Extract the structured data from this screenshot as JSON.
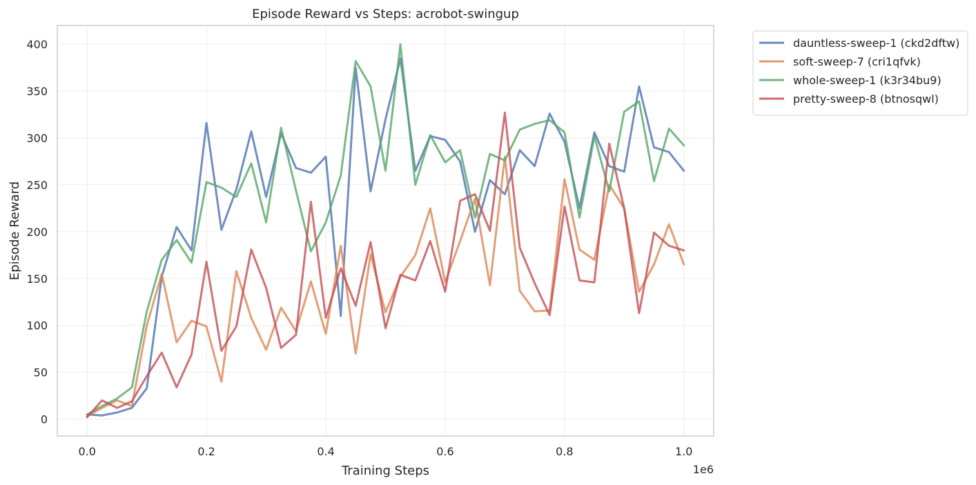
{
  "chart_data": {
    "type": "line",
    "title": "Episode Reward vs Steps: acrobot-swingup",
    "xlabel": "Training Steps",
    "ylabel": "Episode Reward",
    "x_offset_label": "1e6",
    "xlim": [
      -0.05,
      1.05
    ],
    "ylim": [
      -18,
      420
    ],
    "xticks": [
      0.0,
      0.2,
      0.4,
      0.6,
      0.8,
      1.0
    ],
    "xtick_labels": [
      "0.0",
      "0.2",
      "0.4",
      "0.6",
      "0.8",
      "1.0"
    ],
    "yticks": [
      0,
      50,
      100,
      150,
      200,
      250,
      300,
      350,
      400
    ],
    "ytick_labels": [
      "0",
      "50",
      "100",
      "150",
      "200",
      "250",
      "300",
      "350",
      "400"
    ],
    "grid": true,
    "legend_position": "outside-top-right",
    "x": [
      0.0,
      0.025,
      0.05,
      0.075,
      0.1,
      0.125,
      0.15,
      0.175,
      0.2,
      0.225,
      0.25,
      0.275,
      0.3,
      0.325,
      0.35,
      0.375,
      0.4,
      0.425,
      0.45,
      0.475,
      0.5,
      0.525,
      0.55,
      0.575,
      0.6,
      0.625,
      0.65,
      0.675,
      0.7,
      0.725,
      0.75,
      0.775,
      0.8,
      0.825,
      0.85,
      0.875,
      0.9,
      0.925,
      0.95,
      0.975,
      1.0
    ],
    "series": [
      {
        "name": "dauntless-sweep-1 (ckd2dftw)",
        "color": "#4c72b0",
        "values": [
          5,
          4,
          7,
          12,
          33,
          152,
          205,
          180,
          316,
          202,
          245,
          307,
          237,
          305,
          268,
          263,
          280,
          110,
          375,
          243,
          320,
          385,
          265,
          302,
          298,
          275,
          200,
          255,
          240,
          287,
          270,
          326,
          296,
          225,
          306,
          270,
          264,
          355,
          290,
          285,
          265
        ]
      },
      {
        "name": "soft-sweep-7 (cri1qfvk)",
        "color": "#dd8452",
        "values": [
          3,
          12,
          20,
          14,
          100,
          155,
          82,
          105,
          99,
          40,
          158,
          108,
          74,
          119,
          94,
          147,
          91,
          185,
          70,
          176,
          114,
          152,
          175,
          225,
          146,
          190,
          235,
          143,
          280,
          137,
          115,
          116,
          256,
          181,
          170,
          250,
          225,
          136,
          165,
          208,
          165
        ]
      },
      {
        "name": "whole-sweep-1 (k3r34bu9)",
        "color": "#55a868",
        "values": [
          5,
          14,
          22,
          34,
          115,
          170,
          191,
          167,
          253,
          247,
          237,
          273,
          210,
          311,
          244,
          179,
          210,
          260,
          382,
          355,
          265,
          400,
          250,
          303,
          274,
          287,
          215,
          283,
          276,
          309,
          315,
          319,
          306,
          215,
          302,
          243,
          328,
          339,
          254,
          310,
          292
        ]
      },
      {
        "name": "pretty-sweep-8 (btnosqwl)",
        "color": "#c44e52",
        "values": [
          2,
          20,
          12,
          19,
          46,
          71,
          34,
          69,
          168,
          73,
          99,
          181,
          140,
          76,
          90,
          232,
          108,
          161,
          121,
          189,
          97,
          154,
          148,
          190,
          136,
          233,
          240,
          201,
          327,
          183,
          145,
          111,
          227,
          148,
          146,
          294,
          225,
          113,
          199,
          185,
          180
        ]
      }
    ]
  }
}
